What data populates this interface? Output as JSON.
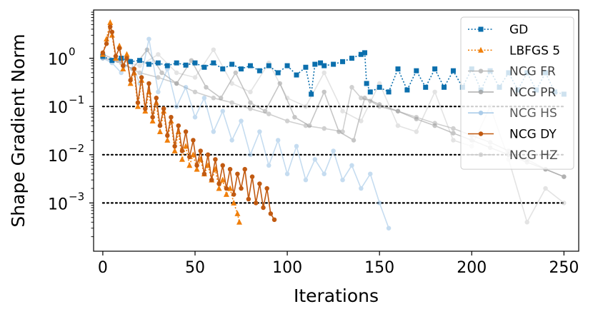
{
  "chart_data": {
    "type": "line",
    "title": "",
    "xlabel": "Iterations",
    "ylabel": "Shape Gradient Norm",
    "yscale": "log",
    "xlim": [
      -5,
      258
    ],
    "ylim": [
      0.0001,
      10
    ],
    "x_ticks": [
      0,
      50,
      100,
      150,
      200,
      250
    ],
    "x_tick_labels": [
      "0",
      "50",
      "100",
      "150",
      "200",
      "250"
    ],
    "y_ticks": [
      0.001,
      0.01,
      0.1,
      1
    ],
    "y_tick_labels": [
      {
        "base": "10",
        "exp": "−3"
      },
      {
        "base": "10",
        "exp": "−2"
      },
      {
        "base": "10",
        "exp": "−1"
      },
      {
        "base": "10",
        "exp": "0"
      }
    ],
    "reference_lines": [
      0.1,
      0.01,
      0.001
    ],
    "reference_line_range": [
      0,
      250
    ],
    "legend_position": "upper-right",
    "series": [
      {
        "name": "GD",
        "color": "#0b6fad",
        "marker": "square",
        "linestyle": "dotted",
        "alpha": 1,
        "x": [
          0,
          5,
          10,
          15,
          20,
          25,
          30,
          35,
          40,
          45,
          50,
          55,
          60,
          65,
          70,
          75,
          80,
          85,
          90,
          95,
          100,
          105,
          110,
          113,
          115,
          118,
          120,
          125,
          130,
          135,
          140,
          142,
          143,
          145,
          150,
          155,
          160,
          165,
          170,
          175,
          180,
          185,
          190,
          195,
          200,
          205,
          210,
          215,
          220,
          225,
          230,
          235,
          240,
          245,
          250
        ],
        "y": [
          1.1,
          0.9,
          1.0,
          0.85,
          0.9,
          0.75,
          0.8,
          0.7,
          0.8,
          0.72,
          0.8,
          0.65,
          0.8,
          0.6,
          0.75,
          0.6,
          0.7,
          0.55,
          0.7,
          0.5,
          0.7,
          0.45,
          0.65,
          0.18,
          0.75,
          0.8,
          0.7,
          0.75,
          0.85,
          1.0,
          1.2,
          1.3,
          0.3,
          0.2,
          0.25,
          0.2,
          0.6,
          0.22,
          0.55,
          0.25,
          0.6,
          0.25,
          0.55,
          0.25,
          0.6,
          0.22,
          0.55,
          0.25,
          0.5,
          0.22,
          0.5,
          0.22,
          0.5,
          0.2,
          0.18
        ]
      },
      {
        "name": "LBFGS 5",
        "color": "#f07f0a",
        "marker": "triangle",
        "linestyle": "dotted",
        "alpha": 1,
        "x": [
          0,
          2,
          4,
          5,
          7,
          9,
          11,
          13,
          15,
          17,
          19,
          21,
          23,
          25,
          27,
          29,
          31,
          33,
          35,
          37,
          39,
          41,
          43,
          45,
          47,
          49,
          51,
          53,
          55,
          57,
          59,
          61,
          63,
          65,
          67,
          69,
          71,
          73,
          74
        ],
        "y": [
          1.2,
          2.5,
          5.5,
          3.0,
          1.0,
          1.8,
          0.6,
          1.2,
          0.3,
          0.5,
          0.1,
          0.35,
          0.08,
          0.2,
          0.05,
          0.12,
          0.03,
          0.08,
          0.02,
          0.05,
          0.012,
          0.03,
          0.008,
          0.015,
          0.006,
          0.01,
          0.005,
          0.008,
          0.004,
          0.006,
          0.003,
          0.005,
          0.002,
          0.003,
          0.0015,
          0.002,
          0.001,
          0.0006,
          0.0004
        ]
      },
      {
        "name": "NCG FR",
        "color": "#aaaaaa",
        "marker": "circle",
        "linestyle": "solid",
        "alpha": 0.55,
        "x": [
          0,
          10,
          20,
          30,
          40,
          50,
          60,
          70,
          80,
          90,
          100,
          110,
          120,
          130,
          135,
          140,
          145,
          150,
          160,
          170,
          180,
          190,
          200,
          210,
          220,
          230,
          240,
          250
        ],
        "y": [
          1.0,
          0.8,
          0.5,
          0.4,
          0.3,
          0.2,
          0.15,
          0.12,
          0.09,
          0.07,
          0.05,
          0.04,
          0.035,
          0.03,
          0.25,
          0.15,
          0.13,
          0.1,
          0.08,
          0.06,
          0.045,
          0.035,
          0.025,
          0.018,
          0.012,
          0.008,
          0.005,
          0.0035
        ]
      },
      {
        "name": "NCG PR",
        "color": "#999999",
        "marker": "circle",
        "linestyle": "solid",
        "alpha": 0.55,
        "x": [
          0,
          8,
          16,
          24,
          32,
          40,
          48,
          56,
          64,
          72,
          80,
          88,
          96,
          104,
          112,
          120,
          128,
          136,
          142,
          150,
          160,
          170,
          180,
          190,
          200,
          210,
          220,
          230,
          240,
          250
        ],
        "y": [
          1.2,
          0.9,
          0.6,
          1.5,
          0.5,
          0.3,
          0.9,
          0.25,
          0.15,
          0.5,
          0.12,
          0.08,
          0.3,
          0.06,
          0.04,
          0.2,
          0.03,
          0.02,
          0.15,
          0.11,
          0.08,
          0.055,
          0.04,
          0.028,
          0.02,
          0.014,
          0.01,
          0.007,
          0.005,
          0.0035
        ]
      },
      {
        "name": "NCG HS",
        "color": "#7fb2de",
        "marker": "circle",
        "linestyle": "solid",
        "alpha": 0.45,
        "x": [
          0,
          5,
          10,
          15,
          20,
          25,
          30,
          35,
          40,
          45,
          50,
          55,
          60,
          65,
          70,
          75,
          80,
          85,
          90,
          95,
          100,
          105,
          110,
          115,
          120,
          125,
          130,
          135,
          140,
          145,
          150,
          155
        ],
        "y": [
          1.0,
          0.8,
          0.5,
          0.9,
          0.3,
          2.5,
          0.2,
          0.6,
          0.1,
          0.25,
          0.06,
          0.15,
          0.03,
          0.08,
          0.02,
          0.05,
          0.01,
          0.03,
          0.006,
          0.02,
          0.004,
          0.015,
          0.003,
          0.008,
          0.004,
          0.012,
          0.003,
          0.006,
          0.002,
          0.004,
          0.001,
          0.0003
        ]
      },
      {
        "name": "NCG DY",
        "color": "#c15a11",
        "marker": "circle",
        "linestyle": "solid",
        "alpha": 1,
        "x": [
          0,
          2,
          4,
          5,
          7,
          9,
          11,
          13,
          15,
          17,
          19,
          21,
          23,
          25,
          27,
          29,
          31,
          33,
          35,
          37,
          39,
          41,
          43,
          45,
          47,
          49,
          51,
          53,
          55,
          57,
          59,
          61,
          63,
          65,
          67,
          69,
          71,
          73,
          75,
          77,
          79,
          81,
          83,
          85,
          87,
          89,
          91,
          93
        ],
        "y": [
          1.3,
          2.0,
          4.5,
          3.5,
          1.1,
          1.6,
          0.7,
          1.0,
          0.35,
          0.6,
          0.12,
          0.4,
          0.09,
          0.3,
          0.06,
          0.15,
          0.04,
          0.09,
          0.025,
          0.06,
          0.015,
          0.04,
          0.012,
          0.03,
          0.009,
          0.02,
          0.006,
          0.012,
          0.004,
          0.01,
          0.003,
          0.008,
          0.0025,
          0.006,
          0.002,
          0.005,
          0.0015,
          0.004,
          0.002,
          0.005,
          0.0012,
          0.0035,
          0.001,
          0.0025,
          0.0008,
          0.002,
          0.0006,
          0.00045
        ]
      },
      {
        "name": "NCG HZ",
        "color": "#c8c8c8",
        "marker": "circle",
        "linestyle": "solid",
        "alpha": 0.5,
        "x": [
          0,
          10,
          20,
          30,
          40,
          50,
          60,
          70,
          80,
          90,
          100,
          110,
          120,
          130,
          140,
          150,
          160,
          170,
          180,
          190,
          200,
          210,
          220,
          230,
          240,
          250
        ],
        "y": [
          1.0,
          0.9,
          0.7,
          1.2,
          0.5,
          0.4,
          1.5,
          0.3,
          0.2,
          0.8,
          0.15,
          0.1,
          0.5,
          0.08,
          0.05,
          0.3,
          0.04,
          0.03,
          0.2,
          0.02,
          0.015,
          0.1,
          0.008,
          0.0004,
          0.002,
          0.001
        ]
      }
    ]
  }
}
